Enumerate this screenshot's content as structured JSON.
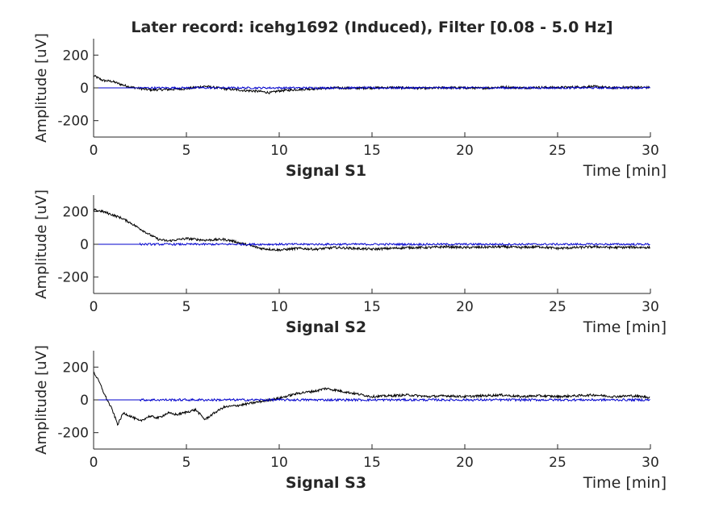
{
  "figure": {
    "title": "Later record: icehg1692 (Induced), Filter [0.08 - 5.0 Hz]",
    "colors": {
      "raw": "#000000",
      "filtered": "#0000cc",
      "axis": "#262626",
      "background": "#ffffff"
    }
  },
  "chart_data": [
    {
      "type": "line",
      "subplot_label": "Signal S1",
      "xlabel_right": "Time [min]",
      "ylabel": "Amplitude [uV]",
      "xlim": [
        0,
        30
      ],
      "ylim": [
        -300,
        300
      ],
      "xticks": [
        0,
        5,
        10,
        15,
        20,
        25,
        30
      ],
      "yticks": [
        -200,
        0,
        200
      ],
      "grid": false,
      "series": [
        {
          "color": "#000000",
          "x": [
            0,
            0.5,
            1,
            1.5,
            2,
            3,
            4,
            5,
            6,
            7,
            8,
            9,
            9.5,
            10,
            11,
            12,
            13,
            14,
            15,
            16,
            17,
            18,
            19,
            20,
            21,
            22,
            23,
            24,
            25,
            26,
            27,
            28,
            29,
            30
          ],
          "y": [
            75,
            45,
            40,
            20,
            5,
            -12,
            -10,
            -5,
            10,
            -5,
            -15,
            -22,
            -30,
            -18,
            -10,
            -5,
            0,
            -2,
            0,
            2,
            0,
            -3,
            2,
            0,
            -2,
            5,
            0,
            3,
            2,
            5,
            8,
            0,
            5,
            2
          ]
        },
        {
          "color": "#0000cc",
          "x": [
            0,
            2.5,
            30
          ],
          "y": [
            0,
            0,
            0
          ],
          "noise_start": 2.5,
          "noise_amplitude": 6
        }
      ]
    },
    {
      "type": "line",
      "subplot_label": "Signal S2",
      "xlabel_right": "Time [min]",
      "ylabel": "Amplitude [uV]",
      "xlim": [
        0,
        30
      ],
      "ylim": [
        -300,
        300
      ],
      "xticks": [
        0,
        5,
        10,
        15,
        20,
        25,
        30
      ],
      "yticks": [
        -200,
        0,
        200
      ],
      "grid": false,
      "series": [
        {
          "color": "#000000",
          "x": [
            0,
            0.5,
            1,
            1.5,
            2,
            2.5,
            3,
            3.5,
            4,
            5,
            6,
            7,
            7.5,
            8,
            9,
            10,
            11,
            12,
            13,
            14,
            15,
            16,
            17,
            18,
            19,
            20,
            21,
            22,
            23,
            24,
            25,
            26,
            27,
            28,
            29,
            30
          ],
          "y": [
            210,
            200,
            180,
            160,
            130,
            95,
            60,
            30,
            20,
            35,
            25,
            30,
            20,
            5,
            -25,
            -35,
            -25,
            -30,
            -20,
            -25,
            -30,
            -25,
            -20,
            -20,
            -15,
            -20,
            -18,
            -15,
            -20,
            -15,
            -25,
            -20,
            -15,
            -20,
            -18,
            -20
          ]
        },
        {
          "color": "#0000cc",
          "x": [
            0,
            2.5,
            30
          ],
          "y": [
            0,
            0,
            0
          ],
          "noise_start": 2.5,
          "noise_amplitude": 6
        }
      ]
    },
    {
      "type": "line",
      "subplot_label": "Signal S3",
      "xlabel_right": "Time [min]",
      "ylabel": "Amplitude [uV]",
      "xlim": [
        0,
        30
      ],
      "ylim": [
        -300,
        300
      ],
      "xticks": [
        0,
        5,
        10,
        15,
        20,
        25,
        30
      ],
      "yticks": [
        -200,
        0,
        200
      ],
      "grid": false,
      "series": [
        {
          "color": "#000000",
          "x": [
            0,
            0.3,
            0.6,
            1,
            1.3,
            1.6,
            2,
            2.5,
            3,
            3.5,
            4,
            4.5,
            5,
            5.5,
            6,
            6.5,
            7,
            8,
            9,
            10,
            10.5,
            11,
            12,
            12.5,
            13,
            14,
            15,
            16,
            17,
            18,
            19,
            20,
            21,
            22,
            23,
            24,
            25,
            26,
            27,
            28,
            29,
            30
          ],
          "y": [
            170,
            110,
            30,
            -60,
            -150,
            -80,
            -100,
            -130,
            -100,
            -110,
            -80,
            -90,
            -75,
            -60,
            -120,
            -80,
            -45,
            -30,
            -10,
            10,
            25,
            40,
            55,
            70,
            60,
            40,
            20,
            25,
            30,
            20,
            25,
            20,
            25,
            30,
            20,
            25,
            20,
            25,
            30,
            20,
            25,
            15
          ]
        },
        {
          "color": "#0000cc",
          "x": [
            0,
            2.5,
            30
          ],
          "y": [
            0,
            0,
            0
          ],
          "noise_start": 2.5,
          "noise_amplitude": 7
        }
      ]
    }
  ]
}
